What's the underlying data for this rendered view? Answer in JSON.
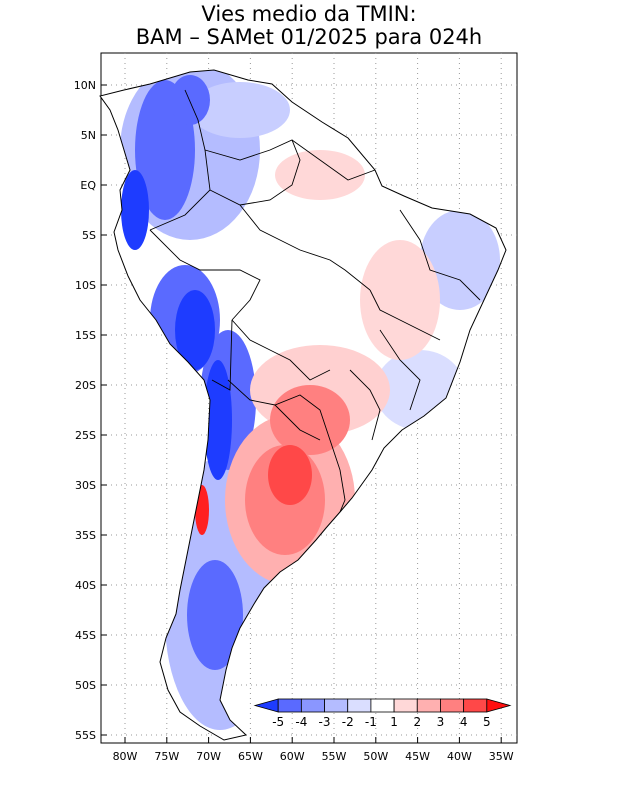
{
  "title": {
    "line1": "Vies medio da TMIN:",
    "line2": "BAM – SAMet 01/2025  para 024h"
  },
  "map": {
    "lon_range": [
      -84,
      -34
    ],
    "lat_range": [
      -56,
      13
    ],
    "lat_ticks": [
      "10N",
      "5N",
      "EQ",
      "5S",
      "10S",
      "15S",
      "20S",
      "25S",
      "30S",
      "35S",
      "40S",
      "45S",
      "50S",
      "55S"
    ],
    "lon_ticks": [
      "80W",
      "75W",
      "70W",
      "65W",
      "60W",
      "55W",
      "50W",
      "45W",
      "40W",
      "35W"
    ]
  },
  "legend": {
    "labels": [
      "-5",
      "-4",
      "-3",
      "-2",
      "-1",
      "1",
      "2",
      "3",
      "4",
      "5"
    ],
    "colors": [
      "#1e3cff",
      "#5a6aff",
      "#8a96ff",
      "#b4bcff",
      "#dadeff",
      "#ffffff",
      "#ffd8d8",
      "#ffb0b0",
      "#ff8080",
      "#ff4848",
      "#ff1010"
    ]
  },
  "colors": {
    "strong_cold": "#1e3cff",
    "mid_cold": "#5a6aff",
    "light_cold": "#b4bcff",
    "light_warm": "#ffd0d0",
    "mid_warm": "#ff8a8a",
    "strong_warm": "#ff2020"
  }
}
